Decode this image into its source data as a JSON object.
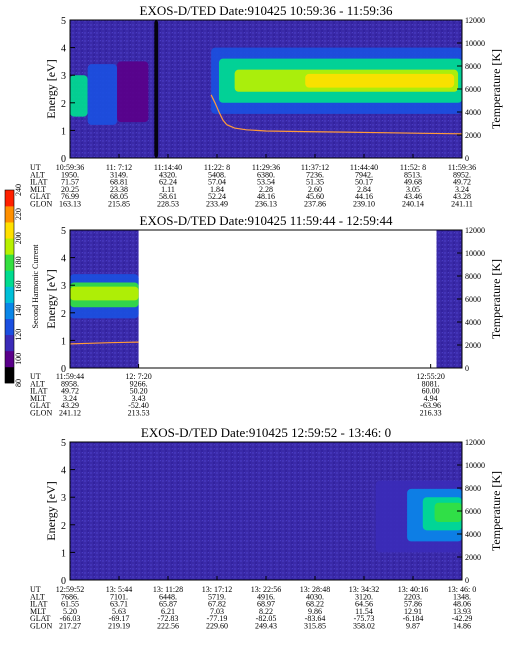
{
  "chart_data": [
    {
      "type": "heatmap",
      "title": "EXOS-D/TED   Date:910425   10:59:36 - 11:59:36",
      "ylabel": "Energy [eV]",
      "y2label": "Temperature [K]",
      "ylim": [
        0,
        5
      ],
      "yticks": [
        "0",
        "1",
        "2",
        "3",
        "4",
        "5"
      ],
      "y2lim": [
        0,
        12000
      ],
      "y2ticks": [
        "0",
        "2000",
        "4000",
        "6000",
        "8000",
        "10000",
        "12000"
      ],
      "ephemeris": {
        "labels": [
          "UT",
          "ALT",
          "ILAT",
          "MLT",
          "GLAT",
          "GLON"
        ],
        "columns": [
          [
            "10:59:36",
            "1950.",
            "71.57",
            "20.25",
            "76.99",
            "163.13"
          ],
          [
            "11: 7:12",
            "3149.",
            "68.81",
            "23.38",
            "68.05",
            "215.85"
          ],
          [
            "11:14:40",
            "4320.",
            "62.24",
            "1.11",
            "58.61",
            "228.53"
          ],
          [
            "11:22: 8",
            "5408.",
            "57.04",
            "1.84",
            "52.24",
            "233.49"
          ],
          [
            "11:29:36",
            "6380.",
            "53.54",
            "2.28",
            "48.16",
            "236.13"
          ],
          [
            "11:37:12",
            "7236.",
            "51.35",
            "2.60",
            "45.60",
            "237.86"
          ],
          [
            "11:44:40",
            "7942.",
            "50.17",
            "2.84",
            "44.16",
            "239.10"
          ],
          [
            "11:52: 8",
            "8513.",
            "49.68",
            "3.05",
            "43.46",
            "240.14"
          ],
          [
            "11:59:36",
            "8952.",
            "49.72",
            "3.24",
            "43.28",
            "241.11"
          ]
        ]
      },
      "bands": [
        {
          "t0": 0.0,
          "t1": 0.045,
          "e0": 1.5,
          "e1": 3.0,
          "level": 0.55
        },
        {
          "t0": 0.045,
          "t1": 0.12,
          "e0": 1.2,
          "e1": 3.4,
          "level": 0.25
        },
        {
          "t0": 0.12,
          "t1": 0.2,
          "e0": 1.3,
          "e1": 3.5,
          "level": 0.12
        },
        {
          "t0": 0.215,
          "t1": 0.225,
          "e0": 0.0,
          "e1": 5.0,
          "level": 0.02
        },
        {
          "t0": 0.36,
          "t1": 1.0,
          "e0": 1.6,
          "e1": 4.0,
          "level": 0.3
        },
        {
          "t0": 0.38,
          "t1": 1.0,
          "e0": 2.0,
          "e1": 3.6,
          "level": 0.5
        },
        {
          "t0": 0.42,
          "t1": 0.99,
          "e0": 2.4,
          "e1": 3.2,
          "level": 0.7
        },
        {
          "t0": 0.6,
          "t1": 0.98,
          "e0": 2.55,
          "e1": 3.05,
          "level": 0.82
        }
      ],
      "temperature_trace": {
        "t": [
          0.36,
          0.37,
          0.38,
          0.39,
          0.4,
          0.42,
          0.45,
          0.5,
          0.6,
          0.7,
          0.8,
          0.9,
          1.0
        ],
        "kelvin": [
          5500,
          4800,
          4000,
          3300,
          2900,
          2600,
          2450,
          2350,
          2300,
          2250,
          2200,
          2150,
          2100
        ]
      }
    },
    {
      "type": "heatmap",
      "title": "EXOS-D/TED   Date:910425   11:59:44 - 12:59:44",
      "ylabel": "Energy [eV]",
      "y2label": "Temperature [K]",
      "ylim": [
        0,
        5
      ],
      "yticks": [
        "0",
        "1",
        "2",
        "3",
        "4",
        "5"
      ],
      "y2lim": [
        0,
        12000
      ],
      "y2ticks": [
        "0",
        "2000",
        "4000",
        "6000",
        "8000",
        "10000",
        "12000"
      ],
      "ephemeris": {
        "labels": [
          "UT",
          "ALT",
          "ILAT",
          "MLT",
          "GLAT",
          "GLON"
        ],
        "columns": [
          [
            "11:59:44",
            "8958.",
            "49.72",
            "3.24",
            "43.29",
            "241.12"
          ],
          [
            "12: 7:20",
            "9266.",
            "50.20",
            "3.43",
            "-52.40",
            "213.53"
          ],
          [
            "12:55:20",
            "8081.",
            "60.00",
            "4.94",
            "-63.96",
            "216.33"
          ]
        ],
        "column_t": [
          0.0,
          0.175,
          0.92
        ]
      },
      "data_segments": [
        [
          0.0,
          0.175
        ],
        [
          0.935,
          1.0
        ]
      ],
      "bands": [
        {
          "t0": 0.0,
          "t1": 0.175,
          "e0": 1.8,
          "e1": 3.4,
          "level": 0.3
        },
        {
          "t0": 0.0,
          "t1": 0.175,
          "e0": 2.2,
          "e1": 3.1,
          "level": 0.6
        },
        {
          "t0": 0.0,
          "t1": 0.175,
          "e0": 2.45,
          "e1": 2.95,
          "level": 0.72
        }
      ],
      "temperature_trace": {
        "t": [
          0.0,
          0.05,
          0.1,
          0.175
        ],
        "kelvin": [
          2100,
          2150,
          2200,
          2250
        ]
      }
    },
    {
      "type": "heatmap",
      "title": "EXOS-D/TED   Date:910425   12:59:52 - 13:46: 0",
      "ylabel": "Energy [eV]",
      "y2label": "Temperature [K]",
      "ylim": [
        0,
        5
      ],
      "yticks": [
        "0",
        "1",
        "2",
        "3",
        "4",
        "5"
      ],
      "y2lim": [
        0,
        12000
      ],
      "y2ticks": [
        "0",
        "2000",
        "4000",
        "6000",
        "8000",
        "10000",
        "12000"
      ],
      "ephemeris": {
        "labels": [
          "UT",
          "ALT",
          "ILAT",
          "MLT",
          "GLAT",
          "GLON"
        ],
        "columns": [
          [
            "12:59:52",
            "7686.",
            "61.55",
            "5.20",
            "-66.03",
            "217.27"
          ],
          [
            "13: 5:44",
            "7101.",
            "63.71",
            "5.63",
            "-69.17",
            "219.19"
          ],
          [
            "13: 11:28",
            "6448.",
            "65.87",
            "6.21",
            "-72.83",
            "222.56"
          ],
          [
            "13: 17:12",
            "5719.",
            "67.82",
            "7.03",
            "-77.19",
            "229.60"
          ],
          [
            "13: 22:56",
            "4916.",
            "68.97",
            "8.22",
            "-82.05",
            "249.43"
          ],
          [
            "13: 28:48",
            "4030.",
            "68.22",
            "9.86",
            "-83.64",
            "315.85"
          ],
          [
            "13: 34:32",
            "3120.",
            "64.56",
            "11.54",
            "-75.73",
            "358.02"
          ],
          [
            "13: 40:16",
            "2203.",
            "57.86",
            "12.91",
            "-6.184",
            "9.87"
          ],
          [
            "13: 46: 0",
            "1348.",
            "48.06",
            "13.93",
            "-42.29",
            "14.86"
          ]
        ]
      },
      "bands": [
        {
          "t0": 0.78,
          "t1": 1.0,
          "e0": 1.0,
          "e1": 3.6,
          "level": 0.22
        },
        {
          "t0": 0.86,
          "t1": 1.0,
          "e0": 1.4,
          "e1": 3.3,
          "level": 0.35
        },
        {
          "t0": 0.9,
          "t1": 1.0,
          "e0": 1.8,
          "e1": 3.0,
          "level": 0.5
        },
        {
          "t0": 0.93,
          "t1": 1.0,
          "e0": 2.1,
          "e1": 2.8,
          "level": 0.62
        }
      ],
      "temperature_trace": {
        "t": [],
        "kelvin": []
      }
    }
  ],
  "colorbar": {
    "label": "Second Harmonic Current",
    "ticks": [
      "80",
      "100",
      "120",
      "140",
      "160",
      "180",
      "200",
      "220",
      "240"
    ],
    "colors": [
      "#000000",
      "#5a008a",
      "#3b2bb8",
      "#1b4fe0",
      "#0a86e8",
      "#00c0d8",
      "#00dc90",
      "#34e040",
      "#b8f000",
      "#ffe000",
      "#ff9000",
      "#ff2000"
    ]
  }
}
